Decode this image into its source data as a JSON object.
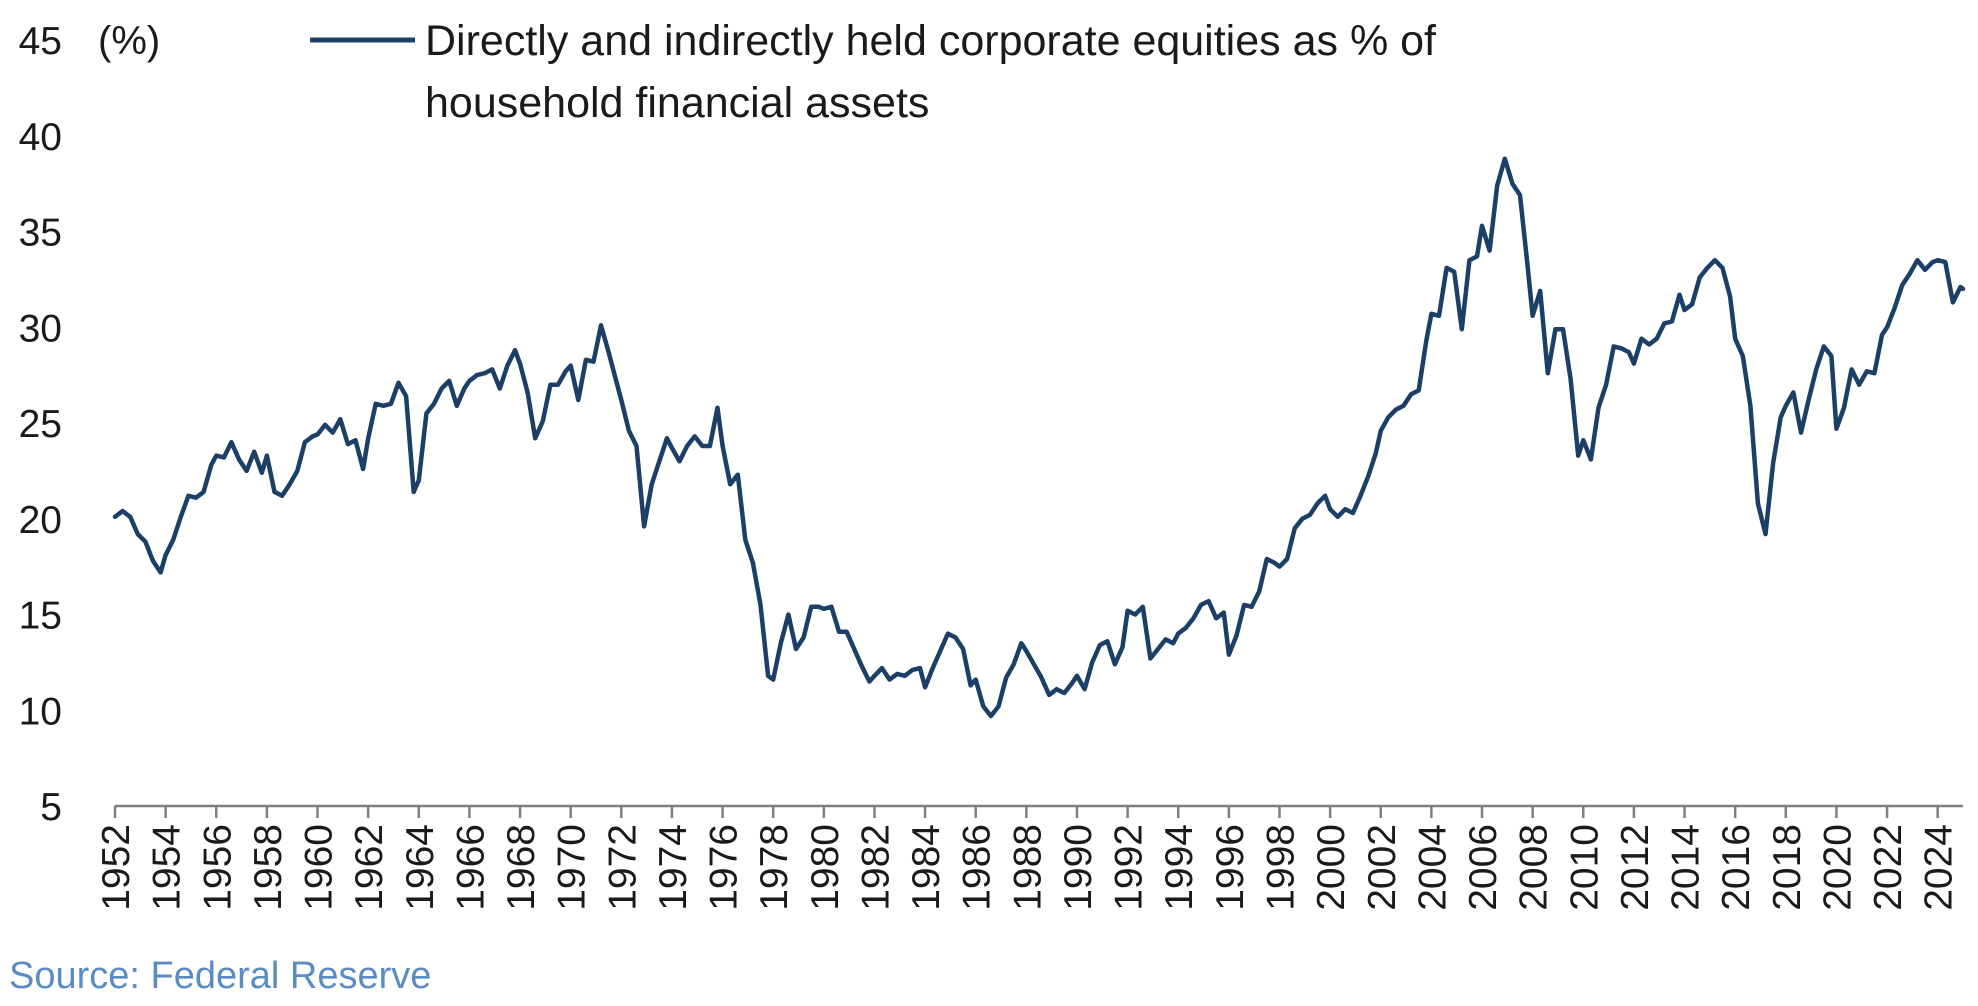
{
  "chart_data": {
    "type": "line",
    "title": "",
    "ylabel": "(%)",
    "xlabel": "",
    "ylim": [
      5,
      45
    ],
    "yticks": [
      5,
      10,
      15,
      20,
      25,
      30,
      35,
      40,
      45
    ],
    "xlim": [
      1952.0,
      2025.0
    ],
    "xticks": [
      "1952",
      "1954",
      "1956",
      "1958",
      "1960",
      "1962",
      "1964",
      "1966",
      "1968",
      "1970",
      "1972",
      "1974",
      "1976",
      "1978",
      "1980",
      "1982",
      "1984",
      "1986",
      "1988",
      "1990",
      "1992",
      "1994",
      "1996",
      "1998",
      "2000",
      "2002",
      "2004",
      "2006",
      "2008",
      "2010",
      "2012",
      "2014",
      "2016",
      "2018",
      "2020",
      "2022",
      "2024"
    ],
    "legend": "top",
    "grid": false,
    "line_color": "#1b3f66",
    "source": "Source: Federal Reserve",
    "series": [
      {
        "name": "Directly and indirectly held corporate equities as % of household financial assets",
        "legend_lines": [
          "Directly and indirectly held corporate equities as % of",
          "household financial assets"
        ],
        "points": [
          [
            1952.0,
            20.1
          ],
          [
            1952.3,
            20.4
          ],
          [
            1952.6,
            20.1
          ],
          [
            1952.9,
            19.2
          ],
          [
            1953.2,
            18.8
          ],
          [
            1953.5,
            17.8
          ],
          [
            1953.8,
            17.2
          ],
          [
            1954.0,
            18.1
          ],
          [
            1954.3,
            18.9
          ],
          [
            1954.6,
            20.1
          ],
          [
            1954.9,
            21.2
          ],
          [
            1955.2,
            21.1
          ],
          [
            1955.5,
            21.4
          ],
          [
            1955.8,
            22.8
          ],
          [
            1956.0,
            23.3
          ],
          [
            1956.3,
            23.2
          ],
          [
            1956.6,
            24.0
          ],
          [
            1956.9,
            23.1
          ],
          [
            1957.2,
            22.5
          ],
          [
            1957.5,
            23.5
          ],
          [
            1957.8,
            22.4
          ],
          [
            1958.0,
            23.3
          ],
          [
            1958.3,
            21.4
          ],
          [
            1958.6,
            21.2
          ],
          [
            1958.9,
            21.8
          ],
          [
            1959.2,
            22.5
          ],
          [
            1959.5,
            24.0
          ],
          [
            1959.8,
            24.3
          ],
          [
            1960.0,
            24.4
          ],
          [
            1960.3,
            24.9
          ],
          [
            1960.6,
            24.5
          ],
          [
            1960.9,
            25.2
          ],
          [
            1961.2,
            23.9
          ],
          [
            1961.5,
            24.1
          ],
          [
            1961.8,
            22.6
          ],
          [
            1962.0,
            24.2
          ],
          [
            1962.3,
            26.0
          ],
          [
            1962.6,
            25.9
          ],
          [
            1962.9,
            26.0
          ],
          [
            1963.2,
            27.1
          ],
          [
            1963.5,
            26.4
          ],
          [
            1963.8,
            21.4
          ],
          [
            1964.0,
            22.0
          ],
          [
            1964.3,
            25.5
          ],
          [
            1964.6,
            26.0
          ],
          [
            1964.9,
            26.8
          ],
          [
            1965.2,
            27.2
          ],
          [
            1965.5,
            25.9
          ],
          [
            1965.8,
            26.8
          ],
          [
            1966.0,
            27.2
          ],
          [
            1966.3,
            27.5
          ],
          [
            1966.6,
            27.6
          ],
          [
            1966.9,
            27.8
          ],
          [
            1967.2,
            26.8
          ],
          [
            1967.5,
            28.0
          ],
          [
            1967.8,
            28.8
          ],
          [
            1968.0,
            28.1
          ],
          [
            1968.3,
            26.6
          ],
          [
            1968.6,
            24.2
          ],
          [
            1968.9,
            25.1
          ],
          [
            1969.2,
            27.0
          ],
          [
            1969.5,
            27.0
          ],
          [
            1969.8,
            27.7
          ],
          [
            1970.0,
            28.0
          ],
          [
            1970.3,
            26.2
          ],
          [
            1970.6,
            28.3
          ],
          [
            1970.9,
            28.2
          ],
          [
            1971.2,
            30.1
          ],
          [
            1971.5,
            28.7
          ],
          [
            1971.8,
            27.2
          ],
          [
            1972.0,
            26.2
          ],
          [
            1972.3,
            24.6
          ],
          [
            1972.6,
            23.8
          ],
          [
            1972.9,
            19.6
          ],
          [
            1973.2,
            21.8
          ],
          [
            1973.5,
            23.0
          ],
          [
            1973.8,
            24.2
          ],
          [
            1974.0,
            23.7
          ],
          [
            1974.3,
            23.0
          ],
          [
            1974.6,
            23.8
          ],
          [
            1974.9,
            24.3
          ],
          [
            1975.2,
            23.8
          ],
          [
            1975.5,
            23.8
          ],
          [
            1975.8,
            25.8
          ],
          [
            1976.0,
            23.8
          ],
          [
            1976.3,
            21.8
          ],
          [
            1976.6,
            22.3
          ],
          [
            1976.9,
            18.9
          ],
          [
            1977.2,
            17.7
          ],
          [
            1977.5,
            15.5
          ],
          [
            1977.8,
            11.8
          ],
          [
            1978.0,
            11.6
          ],
          [
            1978.3,
            13.5
          ],
          [
            1978.6,
            15.0
          ],
          [
            1978.9,
            13.2
          ],
          [
            1979.2,
            13.8
          ],
          [
            1979.5,
            15.4
          ],
          [
            1979.8,
            15.4
          ],
          [
            1980.0,
            15.3
          ],
          [
            1980.3,
            15.4
          ],
          [
            1980.6,
            14.1
          ],
          [
            1980.9,
            14.1
          ],
          [
            1981.2,
            13.2
          ],
          [
            1981.5,
            12.3
          ],
          [
            1981.8,
            11.5
          ],
          [
            1982.0,
            11.8
          ],
          [
            1982.3,
            12.2
          ],
          [
            1982.6,
            11.6
          ],
          [
            1982.9,
            11.9
          ],
          [
            1983.2,
            11.8
          ],
          [
            1983.5,
            12.1
          ],
          [
            1983.8,
            12.2
          ],
          [
            1984.0,
            11.2
          ],
          [
            1984.3,
            12.2
          ],
          [
            1984.6,
            13.1
          ],
          [
            1984.9,
            14.0
          ],
          [
            1985.2,
            13.8
          ],
          [
            1985.5,
            13.2
          ],
          [
            1985.8,
            11.3
          ],
          [
            1986.0,
            11.6
          ],
          [
            1986.3,
            10.2
          ],
          [
            1986.6,
            9.7
          ],
          [
            1986.9,
            10.2
          ],
          [
            1987.2,
            11.7
          ],
          [
            1987.5,
            12.4
          ],
          [
            1987.8,
            13.5
          ],
          [
            1988.0,
            13.1
          ],
          [
            1988.3,
            12.4
          ],
          [
            1988.6,
            11.7
          ],
          [
            1988.9,
            10.8
          ],
          [
            1989.2,
            11.1
          ],
          [
            1989.5,
            10.9
          ],
          [
            1989.8,
            11.4
          ],
          [
            1990.0,
            11.8
          ],
          [
            1990.3,
            11.1
          ],
          [
            1990.6,
            12.5
          ],
          [
            1990.9,
            13.4
          ],
          [
            1991.2,
            13.6
          ],
          [
            1991.5,
            12.4
          ],
          [
            1991.8,
            13.3
          ],
          [
            1992.0,
            15.2
          ],
          [
            1992.3,
            15.0
          ],
          [
            1992.6,
            15.4
          ],
          [
            1992.9,
            12.7
          ],
          [
            1993.2,
            13.2
          ],
          [
            1993.5,
            13.7
          ],
          [
            1993.8,
            13.5
          ],
          [
            1994.0,
            14.0
          ],
          [
            1994.3,
            14.3
          ],
          [
            1994.6,
            14.8
          ],
          [
            1994.9,
            15.5
          ],
          [
            1995.2,
            15.7
          ],
          [
            1995.5,
            14.8
          ],
          [
            1995.8,
            15.1
          ],
          [
            1996.0,
            12.9
          ],
          [
            1996.3,
            13.9
          ],
          [
            1996.6,
            15.5
          ],
          [
            1996.9,
            15.4
          ],
          [
            1997.2,
            16.2
          ],
          [
            1997.5,
            17.9
          ],
          [
            1997.8,
            17.7
          ],
          [
            1998.0,
            17.5
          ],
          [
            1998.3,
            17.9
          ],
          [
            1998.6,
            19.5
          ],
          [
            1998.9,
            20.0
          ],
          [
            1999.2,
            20.2
          ],
          [
            1999.5,
            20.8
          ],
          [
            1999.8,
            21.2
          ],
          [
            2000.0,
            20.5
          ],
          [
            2000.3,
            20.1
          ],
          [
            2000.6,
            20.5
          ],
          [
            2000.9,
            20.3
          ],
          [
            2001.2,
            21.2
          ],
          [
            2001.5,
            22.2
          ],
          [
            2001.8,
            23.4
          ],
          [
            2002.0,
            24.6
          ],
          [
            2002.3,
            25.3
          ],
          [
            2002.6,
            25.7
          ],
          [
            2002.9,
            25.9
          ],
          [
            2003.2,
            26.5
          ],
          [
            2003.5,
            26.7
          ],
          [
            2003.8,
            29.3
          ],
          [
            2004.0,
            30.7
          ],
          [
            2004.3,
            30.6
          ],
          [
            2004.6,
            33.1
          ],
          [
            2004.9,
            32.9
          ],
          [
            2005.2,
            29.9
          ],
          [
            2005.5,
            33.5
          ],
          [
            2005.8,
            33.7
          ],
          [
            2006.0,
            35.3
          ],
          [
            2006.3,
            34.0
          ],
          [
            2006.6,
            37.4
          ],
          [
            2006.9,
            38.8
          ],
          [
            2007.2,
            37.5
          ],
          [
            2007.5,
            36.9
          ],
          [
            2007.8,
            33.2
          ],
          [
            2008.0,
            30.6
          ],
          [
            2008.3,
            31.9
          ],
          [
            2008.6,
            27.6
          ],
          [
            2008.9,
            29.9
          ],
          [
            2009.2,
            29.9
          ],
          [
            2009.5,
            27.3
          ],
          [
            2009.8,
            23.3
          ],
          [
            2010.0,
            24.1
          ],
          [
            2010.3,
            23.1
          ],
          [
            2010.6,
            25.8
          ],
          [
            2010.9,
            27.0
          ],
          [
            2011.2,
            29.0
          ],
          [
            2011.5,
            28.9
          ],
          [
            2011.8,
            28.7
          ],
          [
            2012.0,
            28.1
          ],
          [
            2012.3,
            29.4
          ],
          [
            2012.6,
            29.1
          ],
          [
            2012.9,
            29.4
          ],
          [
            2013.2,
            30.2
          ],
          [
            2013.5,
            30.3
          ],
          [
            2013.8,
            31.7
          ],
          [
            2014.0,
            30.9
          ],
          [
            2014.3,
            31.2
          ],
          [
            2014.6,
            32.6
          ],
          [
            2014.9,
            33.1
          ],
          [
            2015.2,
            33.5
          ],
          [
            2015.5,
            33.1
          ],
          [
            2015.8,
            31.6
          ],
          [
            2016.0,
            29.4
          ],
          [
            2016.3,
            28.5
          ],
          [
            2016.6,
            25.9
          ],
          [
            2016.9,
            20.8
          ],
          [
            2017.2,
            19.2
          ],
          [
            2017.5,
            22.9
          ],
          [
            2017.8,
            25.3
          ],
          [
            2018.0,
            25.9
          ],
          [
            2018.3,
            26.6
          ],
          [
            2018.6,
            24.5
          ],
          [
            2018.9,
            26.2
          ],
          [
            2019.2,
            27.8
          ],
          [
            2019.5,
            29.0
          ],
          [
            2019.8,
            28.5
          ],
          [
            2020.0,
            24.7
          ],
          [
            2020.3,
            25.8
          ],
          [
            2020.6,
            27.8
          ],
          [
            2020.9,
            27.0
          ],
          [
            2021.2,
            27.7
          ],
          [
            2021.5,
            27.6
          ],
          [
            2021.8,
            29.6
          ],
          [
            2022.0,
            30.0
          ],
          [
            2022.3,
            31.0
          ],
          [
            2022.6,
            32.2
          ],
          [
            2022.9,
            32.8
          ],
          [
            2023.2,
            33.5
          ],
          [
            2023.5,
            33.0
          ],
          [
            2023.8,
            33.4
          ],
          [
            2024.0,
            33.5
          ],
          [
            2024.3,
            33.4
          ],
          [
            2024.6,
            31.3
          ],
          [
            2024.9,
            32.1
          ],
          [
            2025.0,
            32.0
          ]
        ]
      }
    ]
  }
}
